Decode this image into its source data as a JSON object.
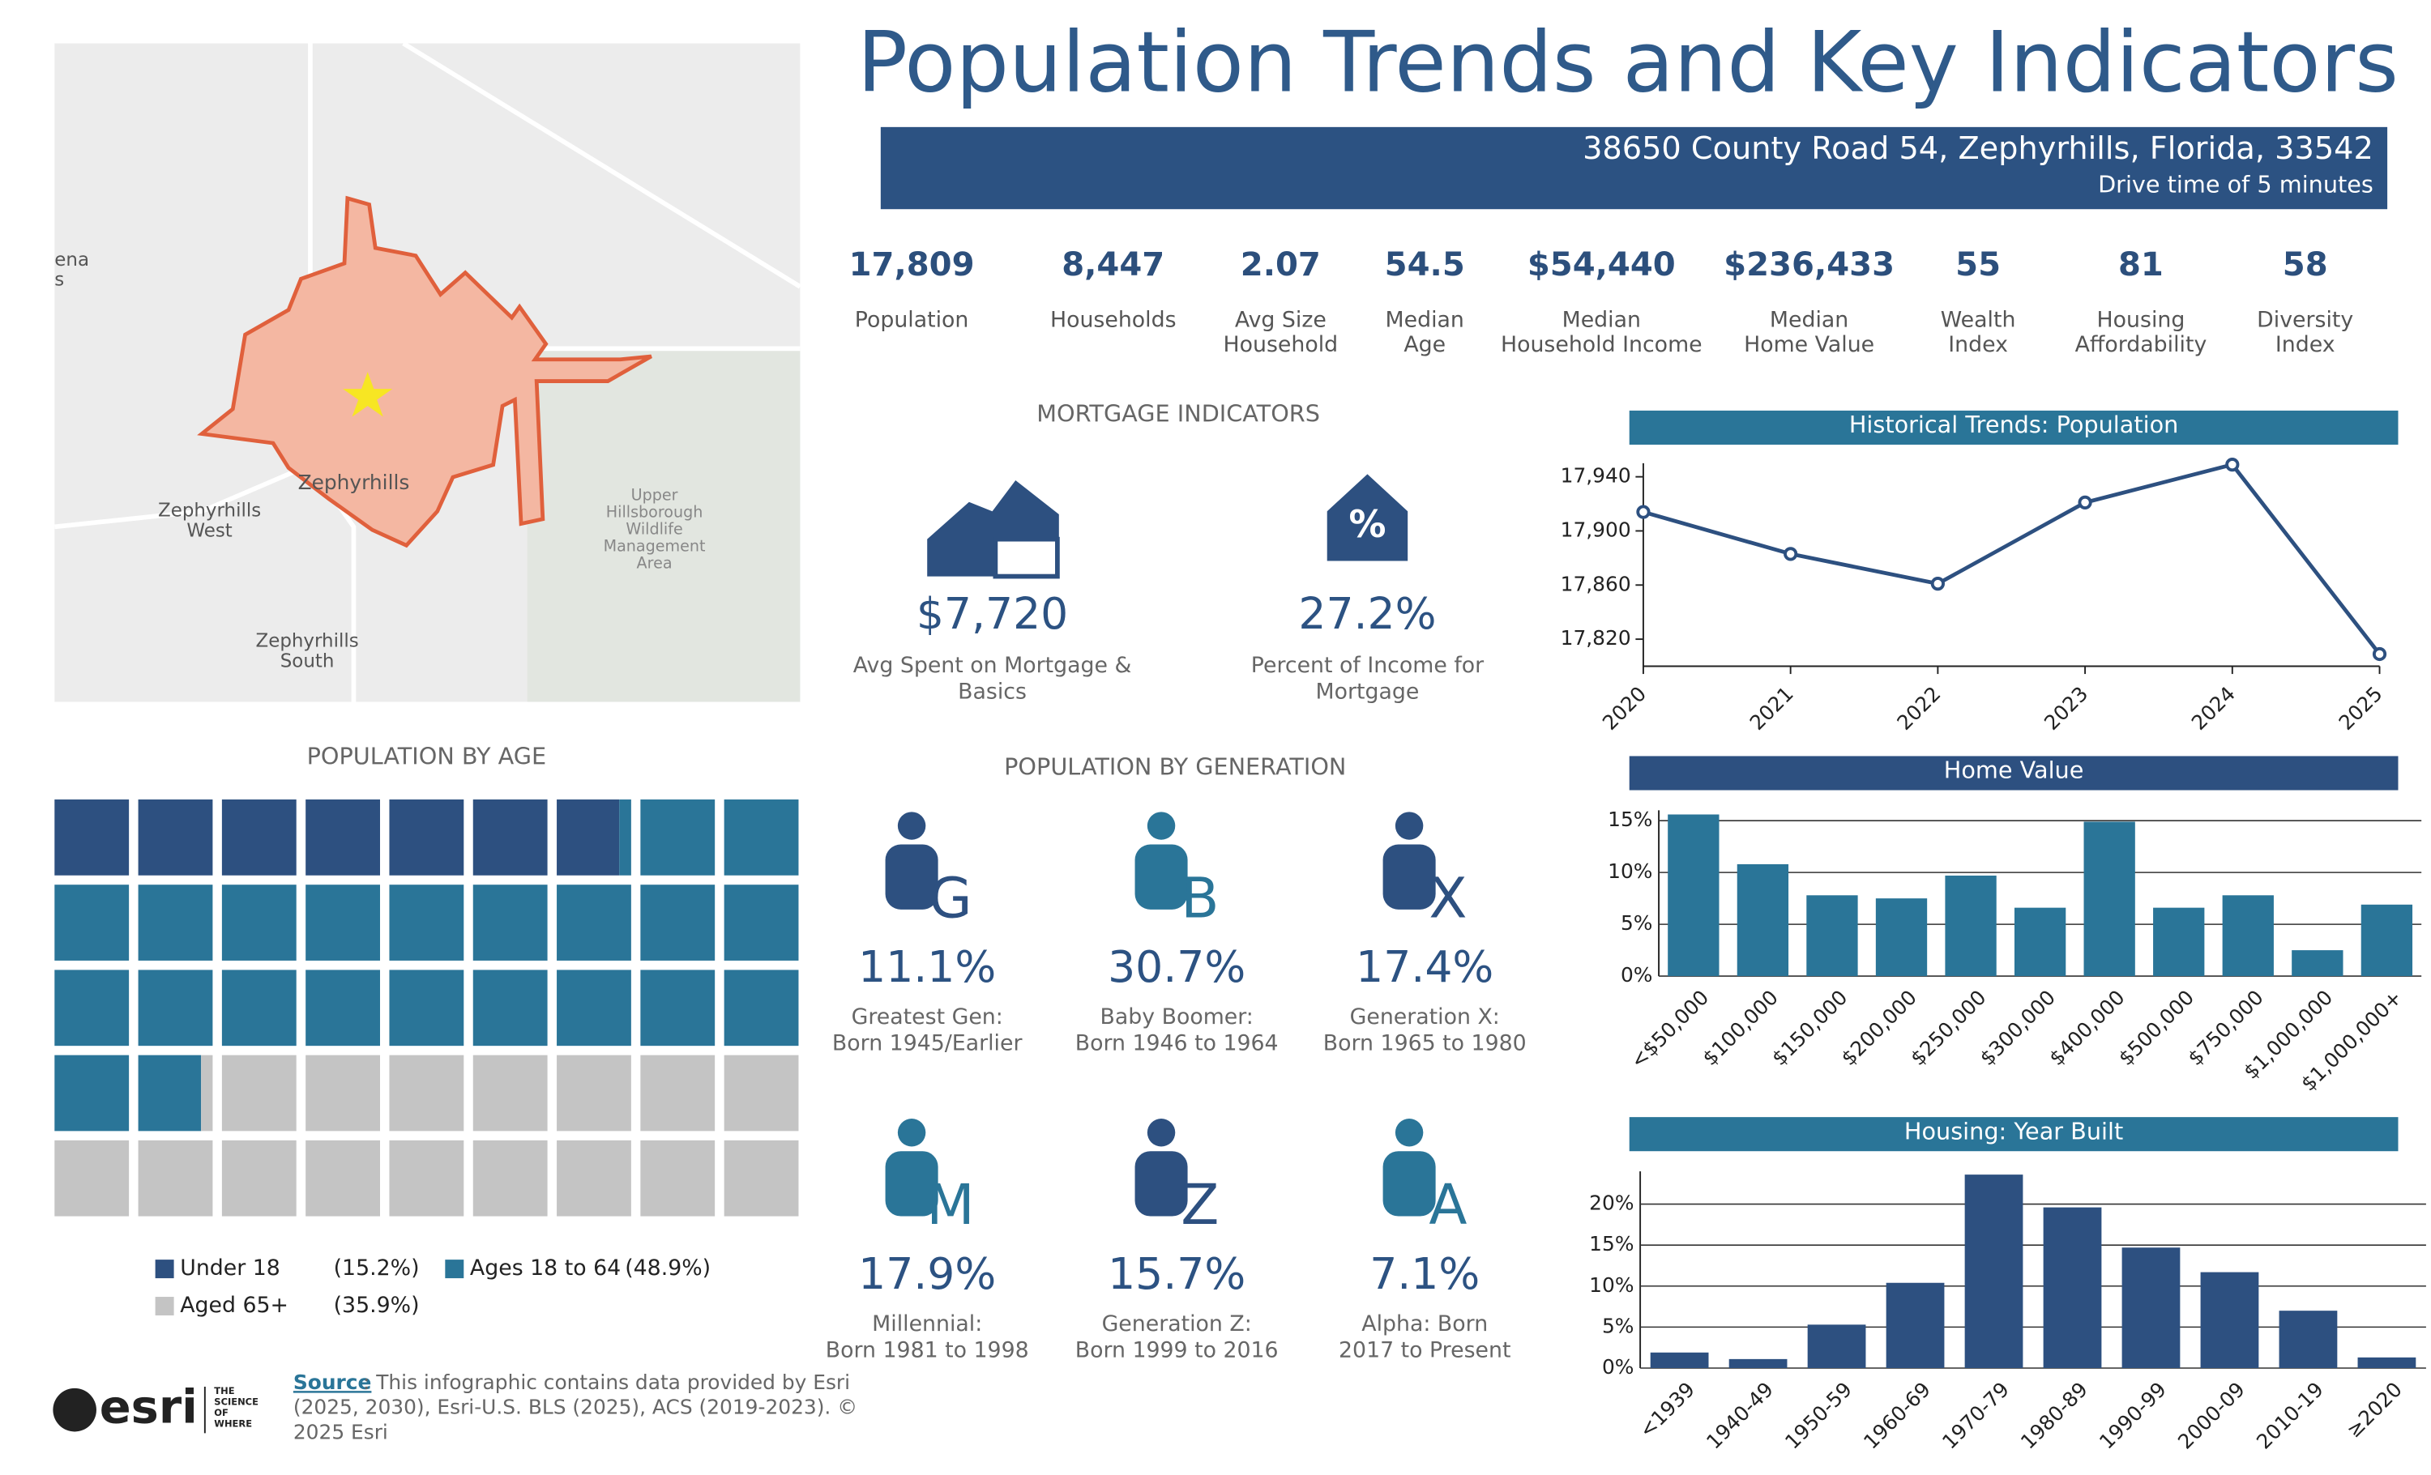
{
  "header": {
    "title": "Population Trends and Key Indicators",
    "address": "38650 County Road 54, Zephyrhills, Florida, 33542",
    "drive_time": "Drive time of 5 minutes"
  },
  "map": {
    "labels": [
      [
        "Zephyrhills"
      ],
      [
        "Zephyrhills",
        "West"
      ],
      [
        "Zephyrhills",
        "South"
      ],
      [
        "Upper",
        "Hillsborough",
        "Wildlife",
        "Management",
        "Area"
      ],
      [
        "ena",
        "s"
      ]
    ]
  },
  "kpis": [
    {
      "value": "17,809",
      "label": [
        "Population"
      ]
    },
    {
      "value": "8,447",
      "label": [
        "Households"
      ]
    },
    {
      "value": "2.07",
      "label": [
        "Avg Size",
        "Household"
      ]
    },
    {
      "value": "54.5",
      "label": [
        "Median",
        "Age"
      ]
    },
    {
      "value": "$54,440",
      "label": [
        "Median",
        "Household Income"
      ]
    },
    {
      "value": "$236,433",
      "label": [
        "Median",
        "Home Value"
      ]
    },
    {
      "value": "55",
      "label": [
        "Wealth",
        "Index"
      ]
    },
    {
      "value": "81",
      "label": [
        "Housing",
        "Affordability"
      ]
    },
    {
      "value": "58",
      "label": [
        "Diversity",
        "Index"
      ]
    }
  ],
  "mortgage": {
    "title": "MORTGAGE INDICATORS",
    "items": [
      {
        "value": "$7,720",
        "label": [
          "Avg Spent on Mortgage &",
          "Basics"
        ]
      },
      {
        "value": "27.2%",
        "label": [
          "Percent of Income for",
          "Mortgage"
        ]
      }
    ]
  },
  "generations": {
    "title": "POPULATION BY GENERATION",
    "items": [
      {
        "letter": "G",
        "value": "11.1%",
        "label": [
          "Greatest Gen:",
          "Born 1945/Earlier"
        ]
      },
      {
        "letter": "B",
        "value": "30.7%",
        "label": [
          "Baby Boomer:",
          "Born 1946 to 1964"
        ]
      },
      {
        "letter": "X",
        "value": "17.4%",
        "label": [
          "Generation X:",
          "Born 1965 to 1980"
        ]
      },
      {
        "letter": "M",
        "value": "17.9%",
        "label": [
          "Millennial:",
          "Born 1981 to 1998"
        ]
      },
      {
        "letter": "Z",
        "value": "15.7%",
        "label": [
          "Generation Z:",
          "Born 1999 to 2016"
        ]
      },
      {
        "letter": "A",
        "value": "7.1%",
        "label": [
          "Alpha:  Born",
          "2017 to Present"
        ]
      }
    ]
  },
  "source": {
    "logo": "esri",
    "tagline": [
      "THE",
      "SCIENCE",
      "OF",
      "WHERE"
    ],
    "label": "Source",
    "text": [
      ": This infographic contains data provided by Esri",
      "(2025, 2030), Esri-U.S. BLS (2025), ACS (2019-2023). ©",
      "2025 Esri"
    ]
  },
  "chart_data": [
    {
      "type": "waffle",
      "title": "POPULATION BY AGE",
      "series": [
        {
          "name": "Under 18",
          "color": "#2d5080",
          "values": [
            15.2
          ],
          "value_labels": [
            "(15.2%)"
          ]
        },
        {
          "name": "Ages 18 to 64",
          "color": "#2a7598",
          "values": [
            48.9
          ],
          "value_labels": [
            "(48.9%)"
          ]
        },
        {
          "name": "Aged 65+",
          "color": "#c4c4c4",
          "values": [
            35.9
          ],
          "value_labels": [
            "(35.9%)"
          ]
        }
      ]
    },
    {
      "type": "line",
      "title": "Historical Trends: Population",
      "color": "#2d5080",
      "x": [
        2020,
        2021,
        2022,
        2023,
        2024,
        2025
      ],
      "values": [
        17914,
        17883,
        17861,
        17921,
        17949,
        17809
      ],
      "xlim": [
        2020,
        2025
      ],
      "xticks": [
        2020,
        2021,
        2022,
        2023,
        2024,
        2025
      ],
      "ylim": [
        17800,
        17950
      ],
      "yticks": [
        {
          "value": 17820,
          "label": "17,820"
        },
        {
          "value": 17860,
          "label": "17,860"
        },
        {
          "value": 17900,
          "label": "17,900"
        },
        {
          "value": 17940,
          "label": "17,940"
        }
      ],
      "grid": false
    },
    {
      "type": "bar",
      "title": "Home Value",
      "color": "#2a7598",
      "categories": [
        "<$50,000",
        "$100,000",
        "$150,000",
        "$200,000",
        "$250,000",
        "$300,000",
        "$400,000",
        "$500,000",
        "$750,000",
        "$1,000,000",
        "$1,000,000+"
      ],
      "values": [
        15.6,
        10.8,
        7.8,
        7.5,
        9.7,
        6.6,
        14.9,
        6.6,
        7.8,
        2.5,
        6.9
      ],
      "ylim": [
        0,
        16
      ],
      "yticks": [
        {
          "value": 0,
          "label": "0%"
        },
        {
          "value": 5,
          "label": "5%"
        },
        {
          "value": 10,
          "label": "10%"
        },
        {
          "value": 15,
          "label": "15%"
        }
      ],
      "grid": true
    },
    {
      "type": "bar",
      "title": "Housing: Year Built",
      "color": "#2d5080",
      "categories": [
        "<1939",
        "1940-49",
        "1950-59",
        "1960-69",
        "1970-79",
        "1980-89",
        "1990-99",
        "2000-09",
        "2010-19",
        "≥2020"
      ],
      "values": [
        1.9,
        1.1,
        5.3,
        10.4,
        23.6,
        19.6,
        14.7,
        11.7,
        7.0,
        1.3
      ],
      "ylim": [
        0,
        24
      ],
      "yticks": [
        {
          "value": 0,
          "label": "0%"
        },
        {
          "value": 5,
          "label": "5%"
        },
        {
          "value": 10,
          "label": "10%"
        },
        {
          "value": 15,
          "label": "15%"
        },
        {
          "value": 20,
          "label": "20%"
        }
      ],
      "grid": true
    }
  ]
}
